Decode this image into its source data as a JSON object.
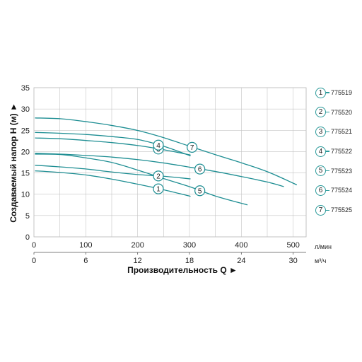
{
  "chart_data": {
    "type": "line",
    "xlabel": "Производительность Q ►",
    "ylabel": "Создаваемый напор H (м) ►",
    "x_unit_primary": "л/мин",
    "x_unit_secondary": "м³/ч",
    "xlim": [
      0,
      525
    ],
    "ylim": [
      0,
      35
    ],
    "xticks": [
      0,
      100,
      200,
      300,
      400,
      500
    ],
    "xticks_secondary": [
      0,
      6,
      12,
      18,
      24,
      30
    ],
    "yticks": [
      0,
      5,
      10,
      15,
      20,
      25,
      30,
      35
    ],
    "grid": true,
    "legend_position": "right",
    "line_color": "#1e8e93",
    "series": [
      {
        "name": "775519",
        "marker": "1",
        "marker_at": 240,
        "x": [
          0,
          50,
          100,
          150,
          200,
          250,
          300
        ],
        "y": [
          15.5,
          15.1,
          14.5,
          13.5,
          12.3,
          11.0,
          9.5
        ]
      },
      {
        "name": "775520",
        "marker": "2",
        "marker_at": 240,
        "x": [
          0,
          50,
          100,
          150,
          200,
          250,
          300
        ],
        "y": [
          16.8,
          16.4,
          15.9,
          15.2,
          14.6,
          14.2,
          13.6
        ]
      },
      {
        "name": "775521",
        "marker": "3",
        "marker_at": 240,
        "x": [
          0,
          50,
          100,
          150,
          200,
          250,
          300
        ],
        "y": [
          23.2,
          23.0,
          22.6,
          22.1,
          21.4,
          20.4,
          19.2
        ]
      },
      {
        "name": "775522",
        "marker": "4",
        "marker_at": 240,
        "x": [
          0,
          50,
          100,
          150,
          200,
          250,
          300
        ],
        "y": [
          24.5,
          24.3,
          24.0,
          23.5,
          22.8,
          21.2,
          19.0
        ]
      },
      {
        "name": "775523",
        "marker": "5",
        "marker_at": 320,
        "x": [
          0,
          50,
          100,
          150,
          200,
          250,
          300,
          350,
          410
        ],
        "y": [
          19.4,
          19.3,
          18.5,
          17.4,
          15.6,
          13.6,
          11.7,
          9.5,
          7.5
        ]
      },
      {
        "name": "775524",
        "marker": "6",
        "marker_at": 320,
        "x": [
          0,
          50,
          100,
          150,
          200,
          250,
          300,
          350,
          400,
          450,
          480
        ],
        "y": [
          19.6,
          19.4,
          19.1,
          18.7,
          18.1,
          17.3,
          16.3,
          15.3,
          14.1,
          12.8,
          11.8
        ]
      },
      {
        "name": "775525",
        "marker": "7",
        "marker_at": 305,
        "x": [
          0,
          50,
          100,
          150,
          200,
          250,
          300,
          350,
          400,
          450,
          505
        ],
        "y": [
          27.9,
          27.7,
          27.0,
          26.1,
          24.9,
          23.2,
          21.2,
          19.2,
          17.3,
          15.2,
          12.2
        ]
      }
    ]
  }
}
